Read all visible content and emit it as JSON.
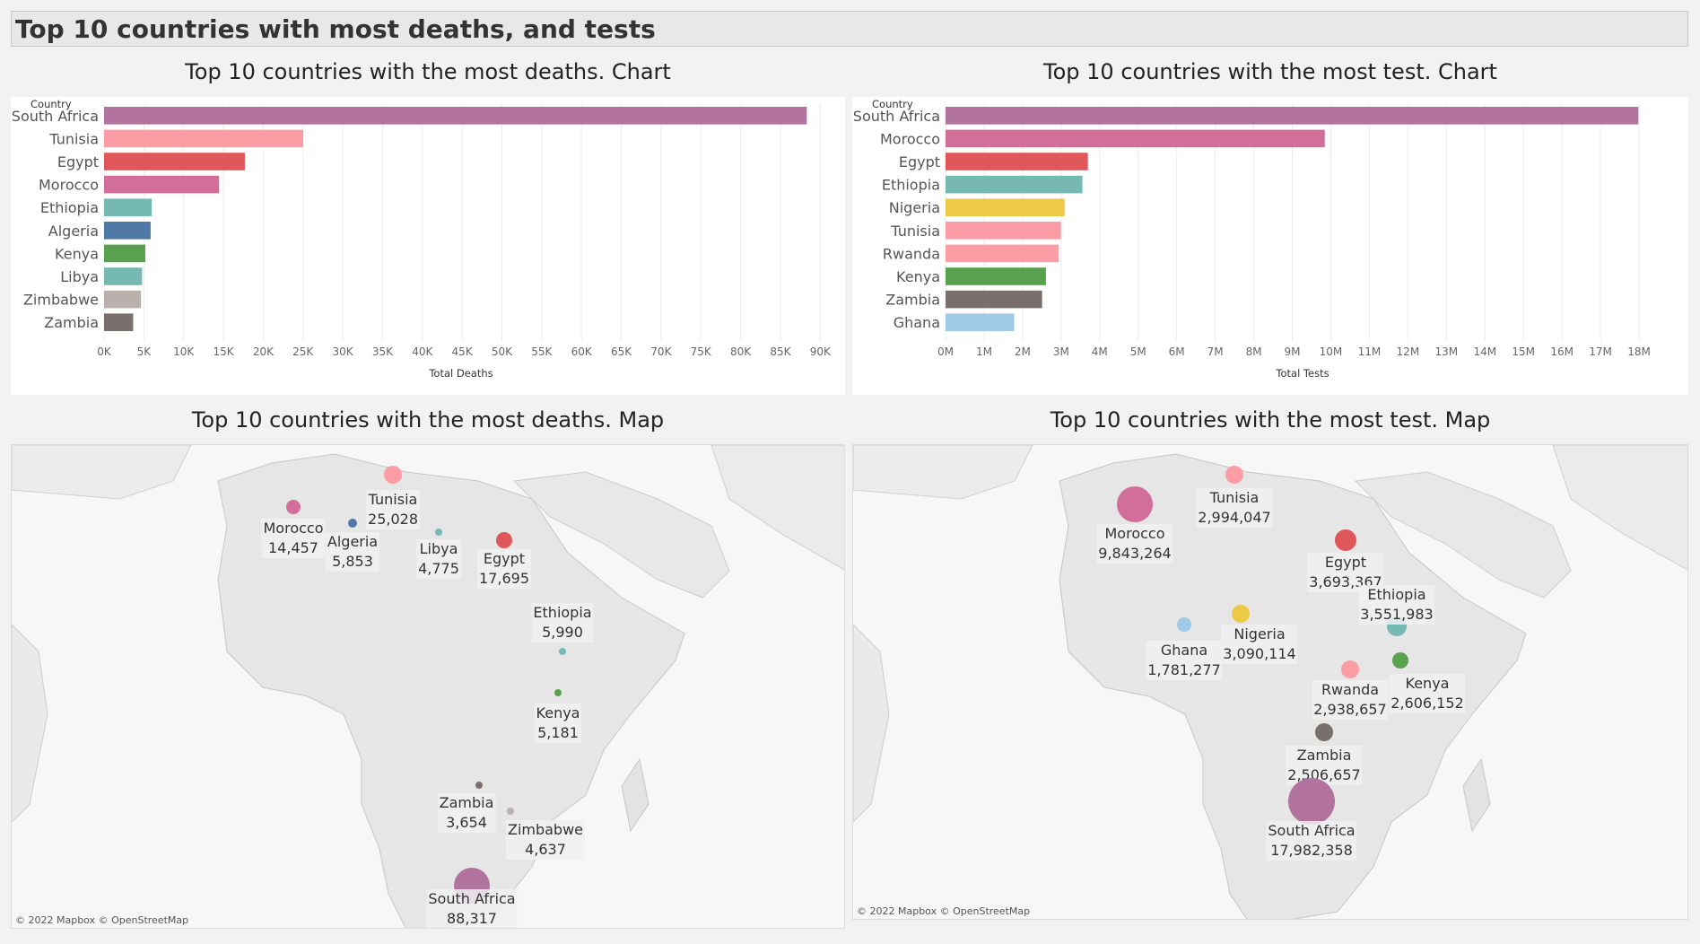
{
  "header": {
    "title": "Top 10 countries with most deaths, and tests"
  },
  "titles": {
    "deaths_chart": "Top 10 countries with the most deaths. Chart",
    "tests_chart": "Top 10 countries with the most test. Chart",
    "deaths_map": "Top 10 countries with the most deaths. Map",
    "tests_map": "Top 10 countries with the most test. Map"
  },
  "map_credit": "© 2022 Mapbox © OpenStreetMap",
  "chart_data": [
    {
      "type": "bar",
      "orientation": "horizontal",
      "dimension_label": "Country",
      "xlabel": "Total Deaths",
      "xlim": [
        0,
        92000
      ],
      "ticks": [
        0,
        5000,
        10000,
        15000,
        20000,
        25000,
        30000,
        35000,
        40000,
        45000,
        50000,
        55000,
        60000,
        65000,
        70000,
        75000,
        80000,
        85000,
        90000
      ],
      "tick_labels": [
        "0K",
        "5K",
        "10K",
        "15K",
        "20K",
        "25K",
        "30K",
        "35K",
        "40K",
        "45K",
        "50K",
        "55K",
        "60K",
        "65K",
        "70K",
        "75K",
        "80K",
        "85K",
        "90K"
      ],
      "categories": [
        "South Africa",
        "Tunisia",
        "Egypt",
        "Morocco",
        "Ethiopia",
        "Algeria",
        "Kenya",
        "Libya",
        "Zimbabwe",
        "Zambia"
      ],
      "values": [
        88317,
        25028,
        17695,
        14457,
        5990,
        5853,
        5181,
        4775,
        4637,
        3654
      ],
      "colors": [
        "#b3739f",
        "#fc9ca5",
        "#e05759",
        "#d16e99",
        "#76b8b2",
        "#4e79a7",
        "#59a14e",
        "#76b8b2",
        "#bab0ac",
        "#79706e"
      ],
      "grid": true
    },
    {
      "type": "bar",
      "orientation": "horizontal",
      "dimension_label": "Country",
      "xlabel": "Total Tests",
      "xlim": [
        0,
        19000000
      ],
      "ticks": [
        0,
        1000000,
        2000000,
        3000000,
        4000000,
        5000000,
        6000000,
        7000000,
        8000000,
        9000000,
        10000000,
        11000000,
        12000000,
        13000000,
        14000000,
        15000000,
        16000000,
        17000000,
        18000000
      ],
      "tick_labels": [
        "0M",
        "1M",
        "2M",
        "3M",
        "4M",
        "5M",
        "6M",
        "7M",
        "8M",
        "9M",
        "10M",
        "11M",
        "12M",
        "13M",
        "14M",
        "15M",
        "16M",
        "17M",
        "18M"
      ],
      "categories": [
        "South Africa",
        "Morocco",
        "Egypt",
        "Ethiopia",
        "Nigeria",
        "Tunisia",
        "Rwanda",
        "Kenya",
        "Zambia",
        "Ghana"
      ],
      "values": [
        17982358,
        9843264,
        3693367,
        3551983,
        3090114,
        2994047,
        2938657,
        2606152,
        2506657,
        1781277
      ],
      "colors": [
        "#b3739f",
        "#d16e99",
        "#e05759",
        "#76b8b2",
        "#edc948",
        "#fc9ca5",
        "#fc9ca5",
        "#59a14e",
        "#79706e",
        "#9fcae6"
      ],
      "grid": true
    }
  ],
  "deaths_map": {
    "points": [
      {
        "name": "Tunisia",
        "value": "25,028",
        "color": "#fc9ca5"
      },
      {
        "name": "Morocco",
        "value": "14,457",
        "color": "#d16e99"
      },
      {
        "name": "Algeria",
        "value": "5,853",
        "color": "#4e79a7"
      },
      {
        "name": "Libya",
        "value": "4,775",
        "color": "#76b8b2"
      },
      {
        "name": "Egypt",
        "value": "17,695",
        "color": "#e05759"
      },
      {
        "name": "Ethiopia",
        "value": "5,990",
        "color": "#76b8b2"
      },
      {
        "name": "Kenya",
        "value": "5,181",
        "color": "#59a14e"
      },
      {
        "name": "Zambia",
        "value": "3,654",
        "color": "#79706e"
      },
      {
        "name": "Zimbabwe",
        "value": "4,637",
        "color": "#bab0ac"
      },
      {
        "name": "South Africa",
        "value": "88,317",
        "color": "#b3739f"
      }
    ]
  },
  "tests_map": {
    "points": [
      {
        "name": "Tunisia",
        "value": "2,994,047",
        "color": "#fc9ca5"
      },
      {
        "name": "Morocco",
        "value": "9,843,264",
        "color": "#d16e99"
      },
      {
        "name": "Egypt",
        "value": "3,693,367",
        "color": "#e05759"
      },
      {
        "name": "Ethiopia",
        "value": "3,551,983",
        "color": "#76b8b2"
      },
      {
        "name": "Nigeria",
        "value": "3,090,114",
        "color": "#edc948"
      },
      {
        "name": "Ghana",
        "value": "1,781,277",
        "color": "#9fcae6"
      },
      {
        "name": "Rwanda",
        "value": "2,938,657",
        "color": "#fc9ca5"
      },
      {
        "name": "Kenya",
        "value": "2,606,152",
        "color": "#59a14e"
      },
      {
        "name": "Zambia",
        "value": "2,506,657",
        "color": "#79706e"
      },
      {
        "name": "South Africa",
        "value": "17,982,358",
        "color": "#b3739f"
      }
    ]
  }
}
